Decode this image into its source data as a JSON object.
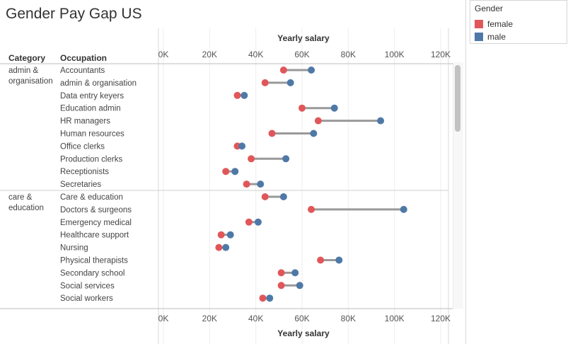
{
  "title": "Gender Pay Gap US",
  "legend": {
    "title": "Gender",
    "items": [
      {
        "label": "female",
        "color": "#e15759"
      },
      {
        "label": "male",
        "color": "#4e79a7"
      }
    ]
  },
  "table_headers": {
    "category": "Category",
    "occupation": "Occupation"
  },
  "chart_data": {
    "type": "dumbbell",
    "title": "Gender Pay Gap US",
    "xlabel": "Yearly salary",
    "xlim": [
      0,
      120000
    ],
    "xticks": [
      0,
      20000,
      40000,
      60000,
      80000,
      100000,
      120000
    ],
    "xtick_labels": [
      "0K",
      "20K",
      "40K",
      "60K",
      "80K",
      "100K",
      "120K"
    ],
    "grid": true,
    "legend_position": "top-right",
    "series": [
      {
        "name": "female",
        "color": "#e15759"
      },
      {
        "name": "male",
        "color": "#4e79a7"
      }
    ],
    "categories": [
      {
        "name": "admin & organisation",
        "rows": [
          {
            "occupation": "Accountants",
            "female": 52000,
            "male": 64000
          },
          {
            "occupation": "admin & organisation",
            "female": 44000,
            "male": 55000
          },
          {
            "occupation": "Data entry keyers",
            "female": 32000,
            "male": 35000
          },
          {
            "occupation": "Education admin",
            "female": 60000,
            "male": 74000
          },
          {
            "occupation": "HR managers",
            "female": 67000,
            "male": 94000
          },
          {
            "occupation": "Human resources",
            "female": 47000,
            "male": 65000
          },
          {
            "occupation": "Office clerks",
            "female": 32000,
            "male": 34000
          },
          {
            "occupation": "Production clerks",
            "female": 38000,
            "male": 53000
          },
          {
            "occupation": "Receptionists",
            "female": 27000,
            "male": 31000
          },
          {
            "occupation": "Secretaries",
            "female": 36000,
            "male": 42000
          }
        ]
      },
      {
        "name": "care & education",
        "rows": [
          {
            "occupation": "Care & education",
            "female": 44000,
            "male": 52000
          },
          {
            "occupation": "Doctors & surgeons",
            "female": 64000,
            "male": 104000
          },
          {
            "occupation": "Emergency medical",
            "female": 37000,
            "male": 41000
          },
          {
            "occupation": "Healthcare support",
            "female": 25000,
            "male": 29000
          },
          {
            "occupation": "Nursing",
            "female": 24000,
            "male": 27000
          },
          {
            "occupation": "Physical therapists",
            "female": 68000,
            "male": 76000
          },
          {
            "occupation": "Secondary school",
            "female": 51000,
            "male": 57000
          },
          {
            "occupation": "Social services",
            "female": 51000,
            "male": 59000
          },
          {
            "occupation": "Social workers",
            "female": 43000,
            "male": 46000
          }
        ]
      }
    ]
  }
}
